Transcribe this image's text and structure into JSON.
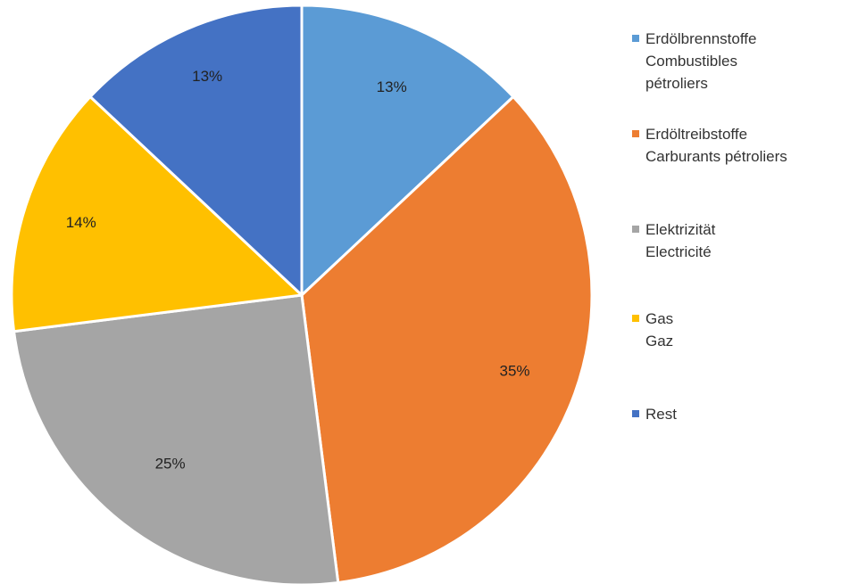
{
  "chart_data": {
    "type": "pie",
    "start_angle_deg": 0,
    "direction": "clockwise",
    "slices": [
      {
        "label_lines": [
          "Erdölbrennstoffe",
          "Combustibles",
          "pétroliers"
        ],
        "value": 13,
        "label": "13%",
        "color": "#5B9BD5"
      },
      {
        "label_lines": [
          "Erdöltreibstoffe",
          "Carburants pétroliers"
        ],
        "value": 35,
        "label": "35%",
        "color": "#ED7D31"
      },
      {
        "label_lines": [
          "Elektrizität",
          "Electricité"
        ],
        "value": 25,
        "label": "25%",
        "color": "#A5A5A5"
      },
      {
        "label_lines": [
          "Gas",
          "Gaz"
        ],
        "value": 14,
        "label": "14%",
        "color": "#FFC000"
      },
      {
        "label_lines": [
          "Rest"
        ],
        "value": 13,
        "label": "13%",
        "color": "#4472C4"
      }
    ],
    "legend_position": "right"
  }
}
